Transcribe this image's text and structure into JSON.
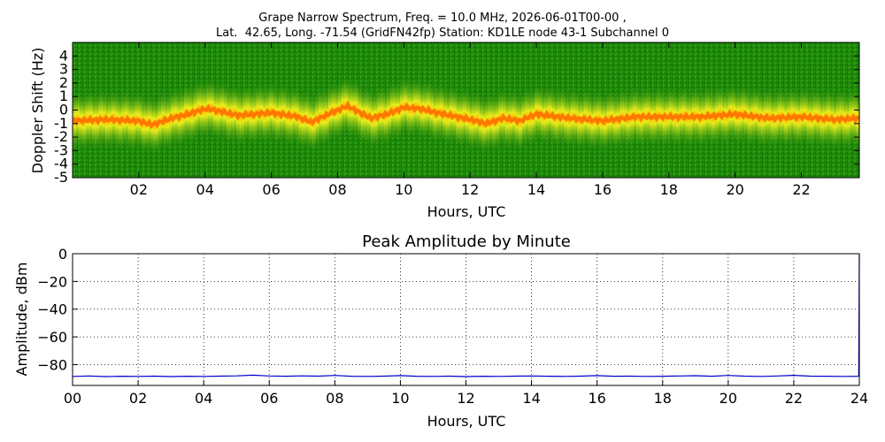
{
  "header": {
    "title_line1": "Grape Narrow Spectrum, Freq. = 10.0 MHz, 2026-06-01T00-00 ,",
    "title_line2": "Lat.  42.65, Long. -71.54 (GridFN42fp) Station: KD1LE node 43-1 Subchannel 0"
  },
  "chart_data": [
    {
      "type": "heatmap",
      "xlabel": "Hours, UTC",
      "ylabel": "Doppler Shift (Hz)",
      "xlim": [
        0,
        23.75
      ],
      "ylim": [
        -5,
        5
      ],
      "x_ticks": [
        {
          "value": 2,
          "label": "02"
        },
        {
          "value": 4,
          "label": "04"
        },
        {
          "value": 6,
          "label": "06"
        },
        {
          "value": 8,
          "label": "08"
        },
        {
          "value": 10,
          "label": "10"
        },
        {
          "value": 12,
          "label": "12"
        },
        {
          "value": 14,
          "label": "14"
        },
        {
          "value": 16,
          "label": "16"
        },
        {
          "value": 18,
          "label": "18"
        },
        {
          "value": 20,
          "label": "20"
        },
        {
          "value": 22,
          "label": "22"
        }
      ],
      "y_ticks": [
        {
          "value": 4,
          "label": "4"
        },
        {
          "value": 3,
          "label": "3"
        },
        {
          "value": 2,
          "label": "2"
        },
        {
          "value": 1,
          "label": "1"
        },
        {
          "value": 0,
          "label": "0"
        },
        {
          "value": -1,
          "label": "-1"
        },
        {
          "value": -2,
          "label": "-2"
        },
        {
          "value": -3,
          "label": "-3"
        },
        {
          "value": -4,
          "label": "-4"
        },
        {
          "value": -5,
          "label": "-5"
        }
      ],
      "colors": {
        "background": "#1e8a0a",
        "mid": "#e8e81a",
        "peak": "#ff6a00"
      },
      "doppler_trace": {
        "x": [
          0,
          1,
          2,
          2.4,
          3,
          3.5,
          4,
          4.3,
          5,
          6,
          6.8,
          7.2,
          8,
          8.3,
          9,
          9.5,
          10,
          10.5,
          11,
          12,
          12.5,
          13,
          13.5,
          14,
          15,
          16,
          17,
          18,
          19,
          20,
          21,
          22,
          23,
          23.75
        ],
        "y": [
          -0.8,
          -0.7,
          -0.8,
          -1.1,
          -0.6,
          -0.3,
          0.1,
          0.0,
          -0.4,
          -0.2,
          -0.5,
          -0.9,
          0.0,
          0.3,
          -0.6,
          -0.3,
          0.2,
          0.1,
          -0.2,
          -0.7,
          -1.0,
          -0.6,
          -0.8,
          -0.3,
          -0.6,
          -0.8,
          -0.5,
          -0.5,
          -0.5,
          -0.3,
          -0.6,
          -0.5,
          -0.7,
          -0.6
        ]
      }
    },
    {
      "type": "line",
      "title": "Peak Amplitude by Minute",
      "xlabel": "Hours, UTC",
      "ylabel": "Amplitude, dBm",
      "xlim": [
        0,
        24
      ],
      "ylim": [
        -95,
        0
      ],
      "grid": true,
      "x_ticks": [
        {
          "value": 0,
          "label": "00"
        },
        {
          "value": 2,
          "label": "02"
        },
        {
          "value": 4,
          "label": "04"
        },
        {
          "value": 6,
          "label": "06"
        },
        {
          "value": 8,
          "label": "08"
        },
        {
          "value": 10,
          "label": "10"
        },
        {
          "value": 12,
          "label": "12"
        },
        {
          "value": 14,
          "label": "14"
        },
        {
          "value": 16,
          "label": "16"
        },
        {
          "value": 18,
          "label": "18"
        },
        {
          "value": 20,
          "label": "20"
        },
        {
          "value": 22,
          "label": "22"
        },
        {
          "value": 24,
          "label": "24"
        }
      ],
      "y_ticks": [
        {
          "value": 0,
          "label": "0"
        },
        {
          "value": -20,
          "label": "−20"
        },
        {
          "value": -40,
          "label": "−40"
        },
        {
          "value": -60,
          "label": "−60"
        },
        {
          "value": -80,
          "label": "−80"
        }
      ],
      "series_color": "#0000cc",
      "series": [
        {
          "x": [
            0,
            0.5,
            1,
            1.5,
            2,
            2.5,
            3,
            3.5,
            4,
            4.5,
            5,
            5.5,
            6,
            6.5,
            7,
            7.5,
            8,
            8.5,
            9,
            9.5,
            10,
            10.5,
            11,
            11.5,
            12,
            12.5,
            13,
            13.5,
            14,
            14.5,
            15,
            15.5,
            16,
            16.5,
            17,
            17.5,
            18,
            18.5,
            19,
            19.5,
            20,
            20.5,
            21,
            21.5,
            22,
            22.5,
            23,
            23.5,
            23.98,
            24
          ],
          "values": [
            -88.5,
            -88.2,
            -88.6,
            -88.4,
            -88.5,
            -88.3,
            -88.6,
            -88.4,
            -88.5,
            -88.3,
            -88.1,
            -87.6,
            -88.2,
            -88.4,
            -88.1,
            -88.3,
            -87.8,
            -88.4,
            -88.5,
            -88.3,
            -87.9,
            -88.4,
            -88.5,
            -88.3,
            -88.6,
            -88.4,
            -88.5,
            -88.3,
            -88.2,
            -88.4,
            -88.5,
            -88.3,
            -87.9,
            -88.4,
            -88.3,
            -88.5,
            -88.4,
            -88.2,
            -88.0,
            -88.4,
            -87.8,
            -88.3,
            -88.5,
            -88.2,
            -87.7,
            -88.3,
            -88.4,
            -88.5,
            -88.4,
            0
          ]
        }
      ]
    }
  ]
}
